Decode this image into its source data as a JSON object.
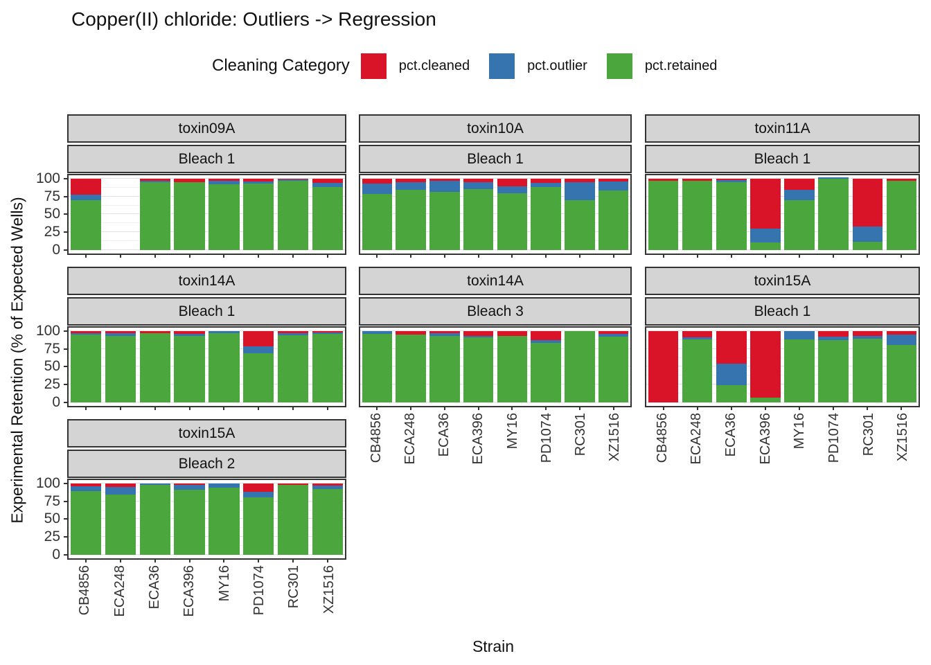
{
  "title": "Copper(II) chloride: Outliers -> Regression",
  "legend": {
    "title": "Cleaning Category",
    "items": [
      {
        "label": "pct.cleaned",
        "key": "cleaned",
        "color": "#DA1428"
      },
      {
        "label": "pct.outlier",
        "key": "outlier",
        "color": "#3674B0"
      },
      {
        "label": "pct.retained",
        "key": "retained",
        "color": "#4AA63D"
      }
    ]
  },
  "axes": {
    "y_title": "Experimental Retention (% of Expected Wells)",
    "x_title": "Strain",
    "y_ticks": [
      100,
      75,
      50,
      25,
      0
    ]
  },
  "chart_data": {
    "type": "bar",
    "stacked": true,
    "ylim": [
      0,
      100
    ],
    "categories": [
      "CB4856",
      "ECA248",
      "ECA36",
      "ECA396",
      "MY16",
      "PD1074",
      "RC301",
      "XZ1516"
    ],
    "colors": {
      "cleaned": "#DA1428",
      "outlier": "#3674B0",
      "retained": "#4AA63D"
    },
    "facets": [
      {
        "toxin": "toxin09A",
        "bleach": "Bleach 1",
        "row": 0,
        "col": 0,
        "x_labels": false,
        "retained": [
          70,
          null,
          95,
          95,
          92,
          93,
          97,
          88
        ],
        "outlier": [
          7,
          null,
          2,
          0,
          5,
          3,
          2,
          6
        ],
        "cleaned": [
          23,
          null,
          3,
          5,
          3,
          4,
          1,
          6
        ]
      },
      {
        "toxin": "toxin10A",
        "bleach": "Bleach 1",
        "row": 0,
        "col": 1,
        "x_labels": false,
        "retained": [
          78,
          84,
          81,
          85,
          79,
          88,
          70,
          83
        ],
        "outlier": [
          15,
          11,
          16,
          10,
          10,
          6,
          25,
          13
        ],
        "cleaned": [
          7,
          5,
          3,
          5,
          11,
          6,
          5,
          4
        ]
      },
      {
        "toxin": "toxin11A",
        "bleach": "Bleach 1",
        "row": 0,
        "col": 2,
        "x_labels": false,
        "retained": [
          97,
          97,
          95,
          11,
          70,
          100,
          12,
          97
        ],
        "outlier": [
          0,
          0,
          3,
          19,
          14,
          2,
          21,
          0
        ],
        "cleaned": [
          3,
          3,
          2,
          70,
          16,
          0,
          67,
          3
        ]
      },
      {
        "toxin": "toxin14A",
        "bleach": "Bleach 1",
        "row": 1,
        "col": 0,
        "x_labels": false,
        "retained": [
          95,
          93,
          97,
          93,
          97,
          69,
          94,
          96
        ],
        "outlier": [
          2,
          4,
          0,
          3,
          3,
          9,
          3,
          2
        ],
        "cleaned": [
          3,
          3,
          3,
          4,
          0,
          22,
          3,
          2
        ]
      },
      {
        "toxin": "toxin14A",
        "bleach": "Bleach 3",
        "row": 1,
        "col": 1,
        "x_labels": true,
        "retained": [
          96,
          95,
          93,
          91,
          93,
          83,
          100,
          92
        ],
        "outlier": [
          4,
          0,
          4,
          2,
          0,
          4,
          0,
          4
        ],
        "cleaned": [
          0,
          5,
          3,
          7,
          7,
          13,
          0,
          4
        ]
      },
      {
        "toxin": "toxin15A",
        "bleach": "Bleach 1",
        "row": 1,
        "col": 2,
        "x_labels": true,
        "retained": [
          0,
          88,
          24,
          7,
          88,
          87,
          89,
          80
        ],
        "outlier": [
          0,
          3,
          30,
          0,
          12,
          5,
          4,
          15
        ],
        "cleaned": [
          100,
          9,
          46,
          93,
          0,
          8,
          7,
          5
        ]
      },
      {
        "toxin": "toxin15A",
        "bleach": "Bleach 2",
        "row": 2,
        "col": 0,
        "x_labels": true,
        "retained": [
          89,
          84,
          98,
          91,
          94,
          80,
          98,
          92
        ],
        "outlier": [
          7,
          11,
          2,
          7,
          6,
          8,
          0,
          5
        ],
        "cleaned": [
          4,
          5,
          0,
          2,
          0,
          12,
          2,
          3
        ]
      }
    ]
  }
}
